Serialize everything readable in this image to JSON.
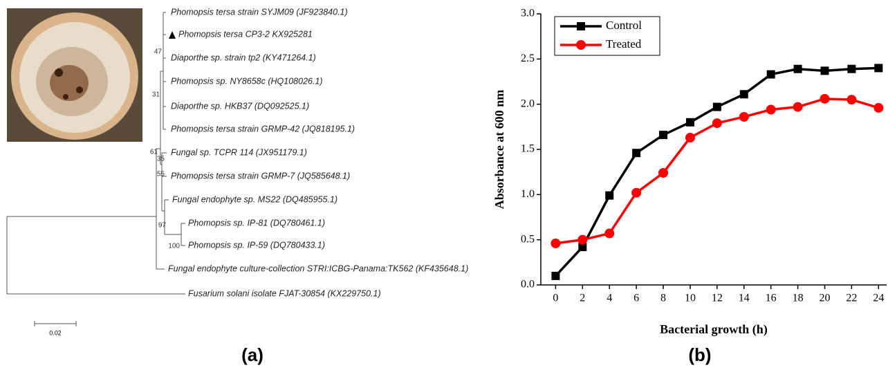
{
  "tree": {
    "leaves": [
      "Phomopsis tersa strain SYJM09 (JF923840.1)",
      "Phomopsis tersa CP3-2 KX925281",
      "Diaporthe sp. strain tp2 (KY471264.1)",
      "Phomopsis sp. NY8658c (HQ108026.1)",
      "Diaporthe sp. HKB37 (DQ092525.1)",
      "Phomopsis tersa strain GRMP-42 (JQ818195.1)",
      "Fungal sp. TCPR 114 (JX951179.1)",
      "Phomopsis tersa strain GRMP-7 (JQ585648.1)",
      "Fungal endophyte sp. MS22 (DQ485955.1)",
      "Phomopsis sp. IP-81 (DQ780461.1)",
      "Phomopsis sp. IP-59 (DQ780433.1)",
      "Fungal endophyte culture-collection STRI:ICBG-Panama:TK562 (KF435648.1)",
      "Fusarium solani isolate FJAT-30854 (KX229750.1)"
    ],
    "bootstrap": [
      47,
      31,
      61,
      35,
      55,
      97,
      100
    ],
    "scale_bar": "0.02"
  },
  "panel_labels": [
    "(a)",
    "(b)"
  ],
  "chart_data": {
    "type": "line",
    "xlabel": "Bacterial growth (h)",
    "ylabel": "Absorbance at 600 nm",
    "x": [
      0,
      2,
      4,
      6,
      8,
      10,
      12,
      14,
      16,
      18,
      20,
      22,
      24
    ],
    "series": [
      {
        "name": "Control",
        "color": "#000000",
        "marker": "square",
        "values": [
          0.1,
          0.42,
          0.99,
          1.46,
          1.66,
          1.8,
          1.97,
          2.11,
          2.33,
          2.39,
          2.37,
          2.39,
          2.4
        ]
      },
      {
        "name": "Treated",
        "color": "#ff0000",
        "marker": "circle",
        "values": [
          0.46,
          0.5,
          0.57,
          1.02,
          1.24,
          1.63,
          1.79,
          1.86,
          1.94,
          1.97,
          2.06,
          2.05,
          1.96
        ]
      }
    ],
    "xlim": [
      -1.1,
      24.6
    ],
    "ylim": [
      0,
      3
    ],
    "xticks": [
      0,
      2,
      4,
      6,
      8,
      10,
      12,
      14,
      16,
      18,
      20,
      22,
      24
    ],
    "yticks": [
      {
        "value": 0,
        "label": "0.0"
      },
      {
        "value": 0.5,
        "label": "0.5"
      },
      {
        "value": 1,
        "label": "1.0"
      },
      {
        "value": 1.5,
        "label": "1.5"
      },
      {
        "value": 2,
        "label": "2.0"
      },
      {
        "value": 2.5,
        "label": "2.5"
      },
      {
        "value": 3,
        "label": "3.0"
      }
    ],
    "legend": "upper left"
  }
}
